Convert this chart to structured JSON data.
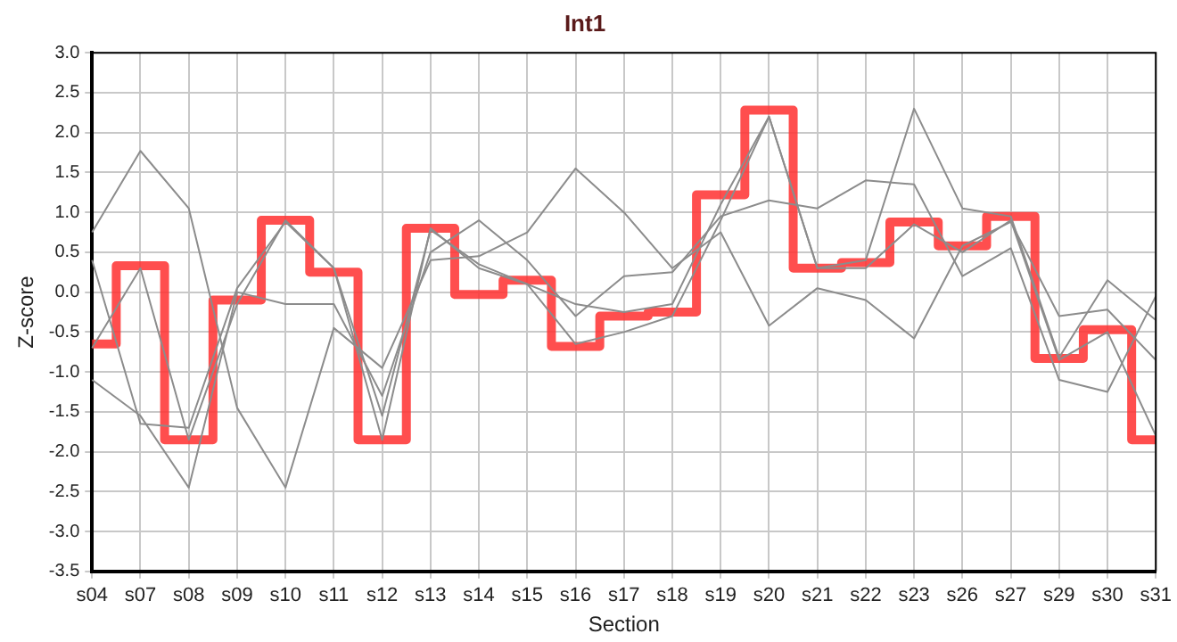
{
  "chart_data": {
    "type": "line",
    "title": "Int1",
    "xlabel": "Section",
    "ylabel": "Z-score",
    "categories": [
      "s04",
      "s07",
      "s08",
      "s09",
      "s10",
      "s11",
      "s12",
      "s13",
      "s14",
      "s15",
      "s16",
      "s17",
      "s18",
      "s19",
      "s20",
      "s21",
      "s22",
      "s23",
      "s26",
      "s27",
      "s29",
      "s30",
      "s31"
    ],
    "series": [
      {
        "color": "#8c8c8c",
        "values": [
          0.75,
          1.77,
          1.05,
          -1.45,
          -2.45,
          -0.45,
          -0.95,
          0.4,
          0.45,
          0.75,
          1.55,
          1.0,
          0.3,
          0.75,
          -0.42,
          0.05,
          -0.1,
          -0.58,
          0.58,
          0.88,
          -0.3,
          -0.22,
          -0.85
        ]
      },
      {
        "color": "#8c8c8c",
        "values": [
          -1.1,
          -1.55,
          -2.45,
          0.0,
          -0.15,
          -0.15,
          -1.3,
          0.5,
          0.9,
          0.4,
          -0.3,
          0.2,
          0.25,
          0.95,
          1.15,
          1.05,
          1.4,
          1.35,
          0.2,
          0.55,
          -1.1,
          -1.25,
          -0.05
        ]
      },
      {
        "color": "#8c8c8c",
        "values": [
          0.4,
          -1.65,
          -1.7,
          0.05,
          0.88,
          0.3,
          -1.55,
          0.78,
          0.35,
          0.1,
          -0.65,
          -0.5,
          -0.3,
          0.9,
          2.2,
          0.3,
          0.4,
          2.3,
          1.05,
          0.95,
          -0.82,
          0.15,
          -0.35
        ]
      },
      {
        "color": "#8c8c8c",
        "values": [
          -0.7,
          0.3,
          -1.85,
          -0.15,
          0.9,
          0.3,
          -1.85,
          0.8,
          0.3,
          0.1,
          -0.15,
          -0.25,
          -0.15,
          1.1,
          2.2,
          0.3,
          0.3,
          0.85,
          0.5,
          0.9,
          -0.85,
          -0.5,
          -1.8
        ]
      },
      {
        "type": "step",
        "color": "#ff3333",
        "values": [
          -0.65,
          0.33,
          -1.85,
          -0.1,
          0.9,
          0.25,
          -1.85,
          0.8,
          -0.03,
          0.15,
          -0.68,
          -0.3,
          -0.25,
          1.22,
          2.28,
          0.3,
          0.37,
          0.88,
          0.58,
          0.95,
          -0.83,
          -0.47,
          -1.85
        ]
      }
    ],
    "ylim": [
      -3.5,
      3.0
    ],
    "yticks": [
      {
        "value": -3.5,
        "label": "-3.5"
      },
      {
        "value": -3,
        "label": "-3.0"
      },
      {
        "value": -2.5,
        "label": "-2.5"
      },
      {
        "value": -2,
        "label": "-2.0"
      },
      {
        "value": -1.5,
        "label": "-1.5"
      },
      {
        "value": -1,
        "label": "-1.0"
      },
      {
        "value": -0.5,
        "label": "-0.5"
      },
      {
        "value": 0,
        "label": "0.0"
      },
      {
        "value": 0.5,
        "label": "0.5"
      },
      {
        "value": 1,
        "label": "1.0"
      },
      {
        "value": 1.5,
        "label": "1.5"
      },
      {
        "value": 2,
        "label": "2.0"
      },
      {
        "value": 2.5,
        "label": "2.5"
      },
      {
        "value": 3,
        "label": "3.0"
      }
    ],
    "grid": true,
    "legend": false
  }
}
